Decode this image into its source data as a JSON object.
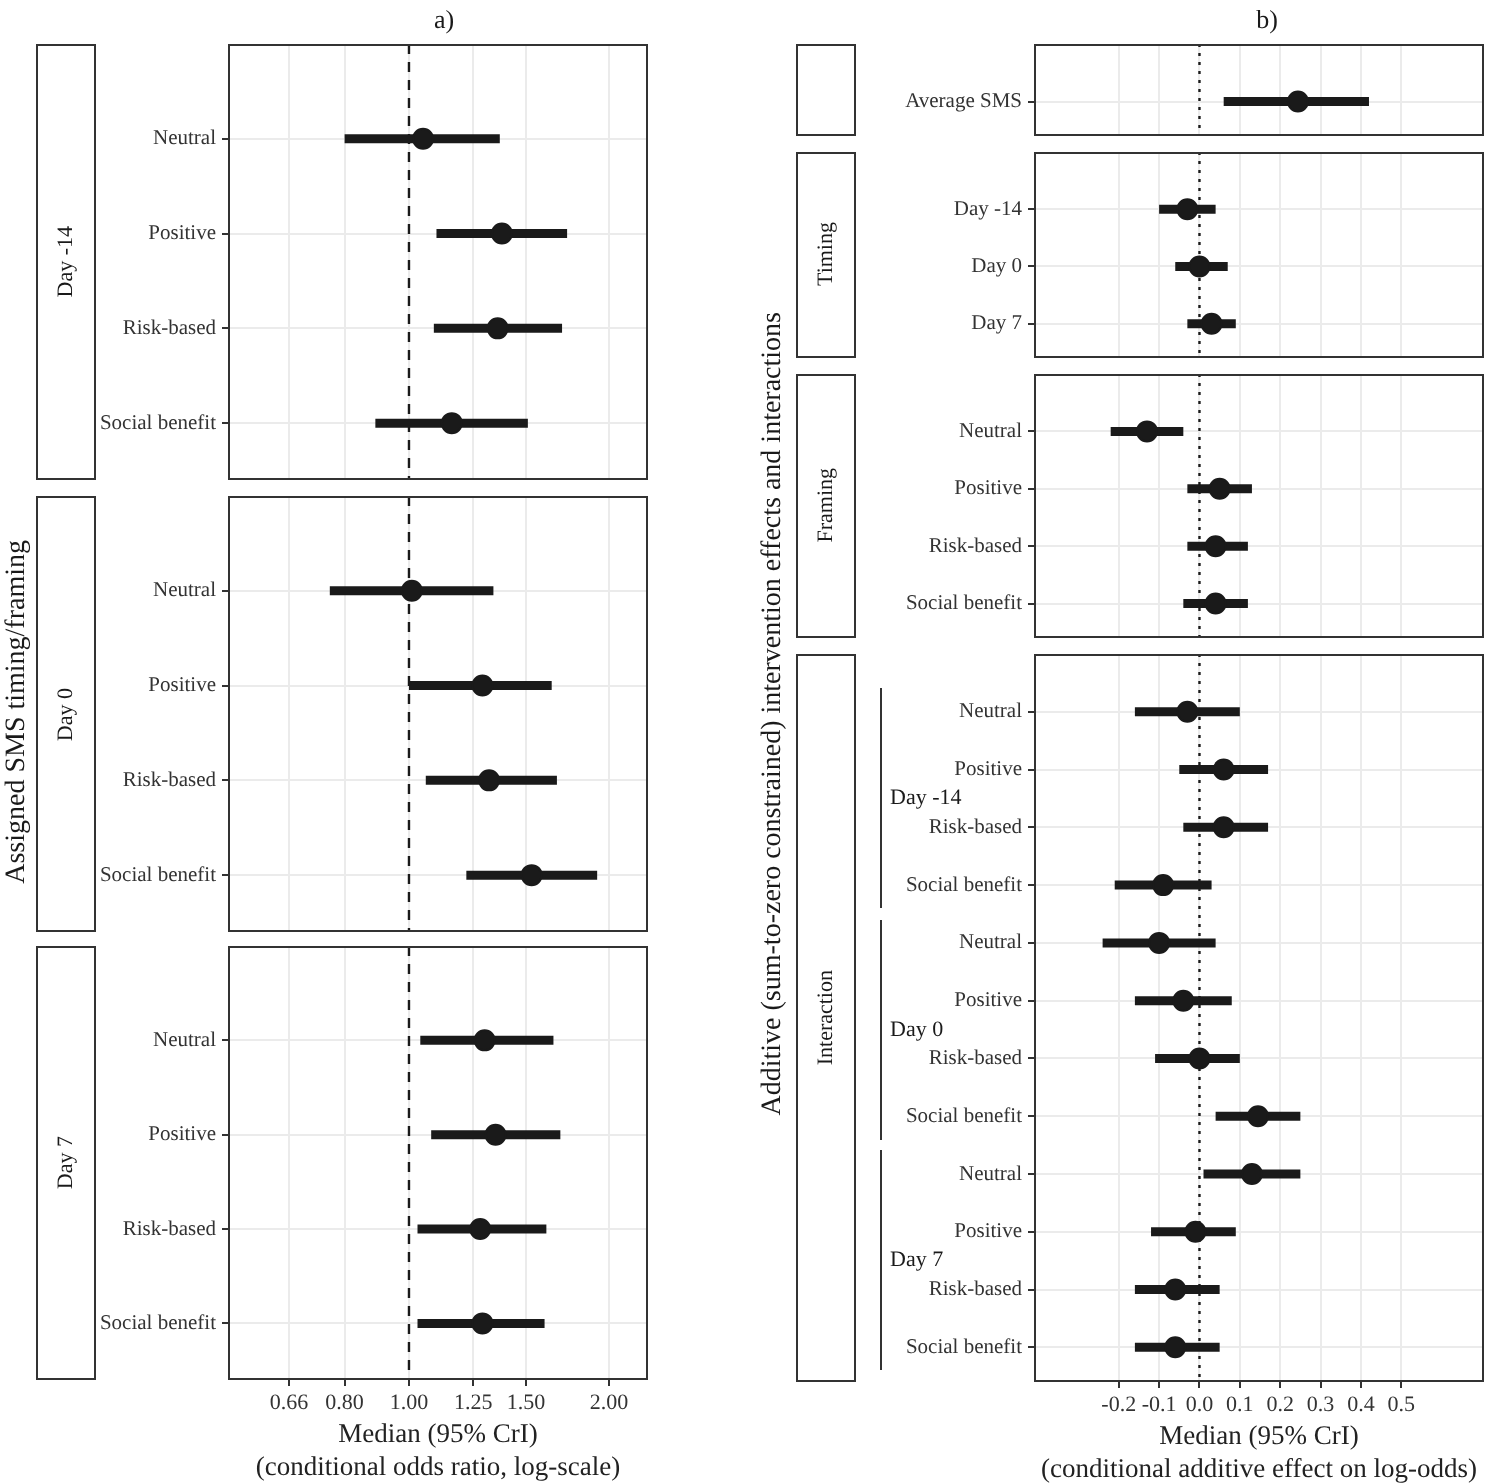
{
  "chart_data": [
    {
      "type": "scatter",
      "orientation": "horizontal",
      "subtitle": "a)",
      "title": "Day -14",
      "categories": [
        "Neutral",
        "Positive",
        "Risk-based",
        "Social benefit"
      ],
      "values": [
        1.05,
        1.38,
        1.36,
        1.16
      ],
      "errors": [
        [
          0.8,
          1.37
        ],
        [
          1.1,
          1.73
        ],
        [
          1.09,
          1.7
        ],
        [
          0.89,
          1.51
        ]
      ],
      "color": "#1a1a1a",
      "marker": "circle",
      "log": "x",
      "xlim": [
        0.534,
        2.29
      ],
      "xticks": [
        0.66,
        0.8,
        1,
        1.25,
        1.5,
        2
      ],
      "grid": true,
      "tick_labels": "y",
      "ref_lines": [
        {
          "axis": "x",
          "value": 1,
          "line_style": "dashed",
          "color": "#1a1a1a"
        }
      ]
    },
    {
      "type": "scatter",
      "orientation": "horizontal",
      "title": "Day 0",
      "ylabel": "Assigned SMS timing/framing",
      "categories": [
        "Neutral",
        "Positive",
        "Risk-based",
        "Social benefit"
      ],
      "values": [
        1.01,
        1.29,
        1.32,
        1.53
      ],
      "errors": [
        [
          0.76,
          1.34
        ],
        [
          1.0,
          1.64
        ],
        [
          1.06,
          1.67
        ],
        [
          1.22,
          1.92
        ]
      ],
      "color": "#1a1a1a",
      "marker": "circle",
      "log": "x",
      "xlim": [
        0.534,
        2.29
      ],
      "xticks": [
        0.66,
        0.8,
        1,
        1.25,
        1.5,
        2
      ],
      "grid": true,
      "tick_labels": "y",
      "ref_lines": [
        {
          "axis": "x",
          "value": 1,
          "line_style": "dashed",
          "color": "#1a1a1a"
        }
      ]
    },
    {
      "type": "scatter",
      "orientation": "horizontal",
      "title": "Day 7",
      "xlabel": "Median (95% CrI)\n(conditional odds ratio, log-scale)",
      "categories": [
        "Neutral",
        "Positive",
        "Risk-based",
        "Social benefit"
      ],
      "values": [
        1.3,
        1.35,
        1.28,
        1.29
      ],
      "errors": [
        [
          1.04,
          1.65
        ],
        [
          1.08,
          1.69
        ],
        [
          1.03,
          1.61
        ],
        [
          1.03,
          1.6
        ]
      ],
      "color": "#1a1a1a",
      "marker": "circle",
      "log": "x",
      "xlim": [
        0.534,
        2.29
      ],
      "xticks": [
        0.66,
        {
          "value": 0.8,
          "label": "0.80"
        },
        {
          "value": 1,
          "label": "1.00"
        },
        1.25,
        {
          "value": 1.5,
          "label": "1.50"
        },
        {
          "value": 2,
          "label": "2.00"
        }
      ],
      "grid": true,
      "ref_lines": [
        {
          "axis": "x",
          "value": 1,
          "line_style": "dashed",
          "color": "#1a1a1a"
        }
      ]
    },
    {
      "type": "scatter",
      "orientation": "horizontal",
      "subtitle": "b)",
      "categories": [
        "Average SMS"
      ],
      "values": [
        0.244
      ],
      "errors": [
        [
          0.06,
          0.42
        ]
      ],
      "color": "#1a1a1a",
      "marker": "circle",
      "xlim": [
        -0.41,
        0.705
      ],
      "xticks": [
        -0.2,
        -0.1,
        0,
        0.1,
        0.2,
        0.3,
        0.4,
        0.5
      ],
      "grid": true,
      "tick_labels": "y",
      "ref_lines": [
        {
          "axis": "x",
          "value": 0,
          "line_style": "dotted",
          "color": "#1a1a1a"
        }
      ]
    },
    {
      "type": "scatter",
      "orientation": "horizontal",
      "title": "Timing",
      "categories": [
        "Day -14",
        "Day 0",
        "Day 7"
      ],
      "values": [
        -0.03,
        0.0,
        0.03
      ],
      "errors": [
        [
          -0.1,
          0.04
        ],
        [
          -0.06,
          0.07
        ],
        [
          -0.03,
          0.09
        ]
      ],
      "color": "#1a1a1a",
      "marker": "circle",
      "xlim": [
        -0.41,
        0.705
      ],
      "xticks": [
        -0.2,
        -0.1,
        0,
        0.1,
        0.2,
        0.3,
        0.4,
        0.5
      ],
      "grid": true,
      "tick_labels": "y",
      "ref_lines": [
        {
          "axis": "x",
          "value": 0,
          "line_style": "dotted",
          "color": "#1a1a1a"
        }
      ]
    },
    {
      "type": "scatter",
      "orientation": "horizontal",
      "title": "Framing",
      "categories": [
        "Neutral",
        "Positive",
        "Risk-based",
        "Social benefit"
      ],
      "values": [
        -0.13,
        0.05,
        0.04,
        0.04
      ],
      "errors": [
        [
          -0.22,
          -0.04
        ],
        [
          -0.03,
          0.13
        ],
        [
          -0.03,
          0.12
        ],
        [
          -0.04,
          0.12
        ]
      ],
      "color": "#1a1a1a",
      "marker": "circle",
      "xlim": [
        -0.41,
        0.705
      ],
      "xticks": [
        -0.2,
        -0.1,
        0,
        0.1,
        0.2,
        0.3,
        0.4,
        0.5
      ],
      "grid": true,
      "tick_labels": "y",
      "ref_lines": [
        {
          "axis": "x",
          "value": 0,
          "line_style": "dotted",
          "color": "#1a1a1a"
        }
      ]
    },
    {
      "type": "scatter",
      "orientation": "horizontal",
      "title": "Interaction",
      "ylabel": "Additive (sum-to-zero constrained) intervention effects and interactions",
      "xlabel": "Median (95% CrI)\n(conditional additive effect on log-odds)",
      "annotations": [
        "Day -14",
        "Day 0",
        "Day 7"
      ],
      "categories": [
        "Neutral",
        "Positive",
        "Risk-based",
        "Social benefit",
        "Neutral",
        "Positive",
        "Risk-based",
        "Social benefit",
        "Neutral",
        "Positive",
        "Risk-based",
        "Social benefit"
      ],
      "values": [
        -0.03,
        0.06,
        0.06,
        -0.09,
        -0.1,
        -0.04,
        0.0,
        0.145,
        0.13,
        -0.01,
        -0.06,
        -0.06
      ],
      "errors": [
        [
          -0.16,
          0.1
        ],
        [
          -0.05,
          0.17
        ],
        [
          -0.04,
          0.17
        ],
        [
          -0.21,
          0.03
        ],
        [
          -0.24,
          0.04
        ],
        [
          -0.16,
          0.08
        ],
        [
          -0.11,
          0.1
        ],
        [
          0.04,
          0.25
        ],
        [
          0.01,
          0.25
        ],
        [
          -0.12,
          0.09
        ],
        [
          -0.16,
          0.05
        ],
        [
          -0.16,
          0.05
        ]
      ],
      "color": "#1a1a1a",
      "marker": "circle",
      "xlim": [
        -0.41,
        0.705
      ],
      "xticks": [
        -0.2,
        -0.1,
        {
          "value": 0,
          "label": "0.0"
        },
        0.1,
        0.2,
        0.3,
        0.4,
        0.5
      ],
      "grid": true,
      "ref_lines": [
        {
          "axis": "x",
          "value": 0,
          "line_style": "dotted",
          "color": "#1a1a1a"
        }
      ]
    }
  ]
}
